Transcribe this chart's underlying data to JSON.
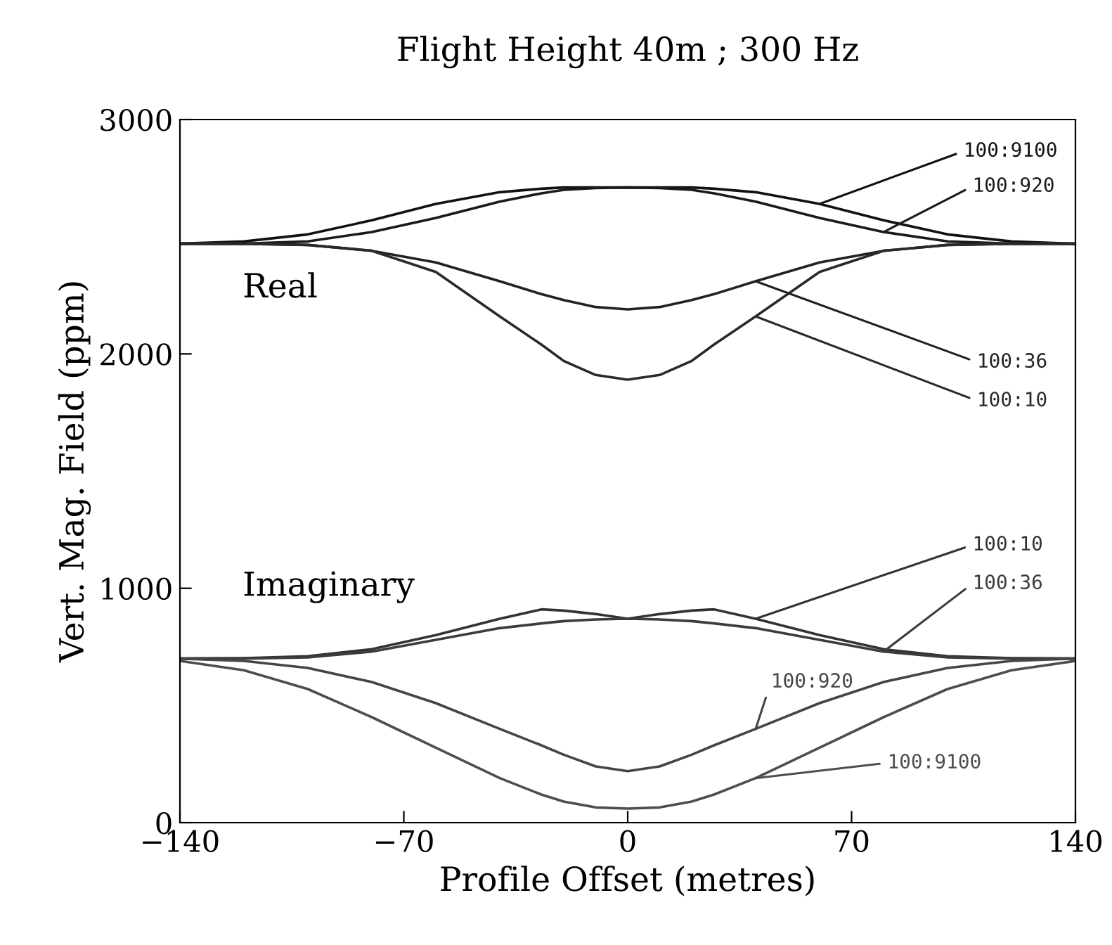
{
  "chart_data": {
    "type": "line",
    "title": "Flight Height 40m ; 300 Hz",
    "xlabel": "Profile Offset (metres)",
    "ylabel": "Vert. Mag. Field (ppm)",
    "x": [
      -140,
      -120,
      -100,
      -80,
      -60,
      -40,
      -27,
      -20,
      -10,
      0,
      10,
      20,
      27,
      40,
      60,
      80,
      100,
      120,
      140
    ],
    "series": [
      {
        "name": "100:9100",
        "color": "#111111",
        "values": [
          2470,
          2480,
          2510,
          2570,
          2640,
          2690,
          2705,
          2710,
          2710,
          2710,
          2710,
          2710,
          2705,
          2690,
          2640,
          2570,
          2510,
          2480,
          2470
        ]
      },
      {
        "name": "100:920",
        "color": "#1a1a1a",
        "values": [
          2470,
          2470,
          2480,
          2520,
          2580,
          2650,
          2685,
          2700,
          2708,
          2710,
          2708,
          2700,
          2685,
          2650,
          2580,
          2520,
          2480,
          2470,
          2470
        ]
      },
      {
        "name": "100:36",
        "color": "#222222",
        "values": [
          2470,
          2470,
          2465,
          2440,
          2390,
          2310,
          2255,
          2230,
          2200,
          2190,
          2200,
          2230,
          2255,
          2310,
          2390,
          2440,
          2465,
          2470,
          2470
        ]
      },
      {
        "name": "100:10",
        "color": "#2a2a2a",
        "values": [
          2470,
          2470,
          2465,
          2440,
          2350,
          2160,
          2040,
          1970,
          1910,
          1890,
          1910,
          1970,
          2040,
          2160,
          2350,
          2440,
          2465,
          2470,
          2470
        ]
      },
      {
        "name": "100:10",
        "color": "#333333",
        "values": [
          700,
          702,
          710,
          740,
          800,
          870,
          910,
          905,
          890,
          870,
          890,
          905,
          910,
          870,
          800,
          740,
          710,
          702,
          700
        ]
      },
      {
        "name": "100:36",
        "color": "#3c3c3c",
        "values": [
          700,
          700,
          705,
          730,
          780,
          830,
          850,
          860,
          867,
          870,
          867,
          860,
          850,
          830,
          780,
          730,
          705,
          700,
          700
        ]
      },
      {
        "name": "100:920",
        "color": "#454545",
        "values": [
          700,
          690,
          660,
          600,
          510,
          400,
          330,
          290,
          240,
          220,
          240,
          290,
          330,
          400,
          510,
          600,
          660,
          690,
          700
        ]
      },
      {
        "name": "100:9100",
        "color": "#4e4e4e",
        "values": [
          690,
          650,
          570,
          450,
          320,
          190,
          120,
          90,
          65,
          60,
          65,
          90,
          120,
          190,
          320,
          450,
          570,
          650,
          690
        ]
      }
    ],
    "xlim": [
      -140,
      140
    ],
    "ylim": [
      0,
      3000
    ],
    "xticks": [
      {
        "value": -140,
        "label": "−140"
      },
      {
        "value": -70,
        "label": "−70"
      },
      0,
      70,
      140
    ],
    "yticks": [
      0,
      1000,
      2000,
      3000
    ],
    "annotations": [
      "Real",
      "Imaginary"
    ],
    "grid": false,
    "legend": false,
    "marker": "none",
    "line_style": "solid"
  }
}
